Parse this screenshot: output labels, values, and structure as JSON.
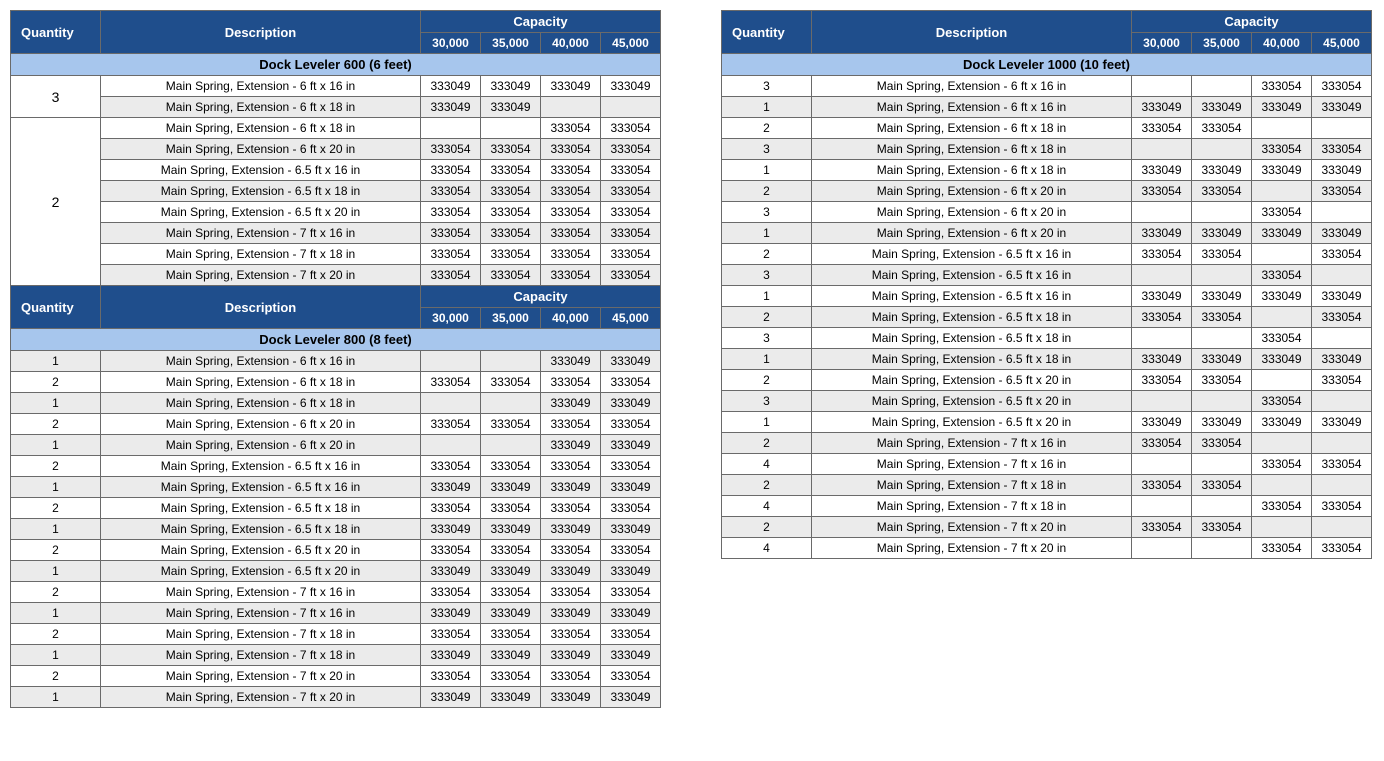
{
  "colors": {
    "header_bg": "#1f4e8c",
    "header_fg": "#ffffff",
    "section_bg": "#a7c6ed",
    "alt_row_bg": "#ebebeb",
    "border": "#6a6a6a"
  },
  "labels": {
    "quantity": "Quantity",
    "description": "Description",
    "capacity": "Capacity",
    "cap_cols": [
      "30,000",
      "35,000",
      "40,000",
      "45,000"
    ]
  },
  "left": {
    "sections": [
      {
        "title": "Dock Leveler 600 (6 feet)",
        "header": true,
        "groups": [
          {
            "qty": "3",
            "rows": [
              {
                "desc": "Main Spring, Extension - 6 ft x 16 in",
                "c": [
                  "333049",
                  "333049",
                  "333049",
                  "333049"
                ],
                "alt": false
              },
              {
                "desc": "Main Spring, Extension - 6 ft x 18 in",
                "c": [
                  "333049",
                  "333049",
                  "",
                  ""
                ],
                "alt": true
              }
            ]
          },
          {
            "qty": "2",
            "rows": [
              {
                "desc": "Main Spring, Extension - 6 ft x 18 in",
                "c": [
                  "",
                  "",
                  "333054",
                  "333054"
                ],
                "alt": false
              },
              {
                "desc": "Main Spring, Extension - 6 ft x 20 in",
                "c": [
                  "333054",
                  "333054",
                  "333054",
                  "333054"
                ],
                "alt": true
              },
              {
                "desc": "Main Spring, Extension - 6.5 ft x 16 in",
                "c": [
                  "333054",
                  "333054",
                  "333054",
                  "333054"
                ],
                "alt": false
              },
              {
                "desc": "Main Spring, Extension - 6.5 ft x 18 in",
                "c": [
                  "333054",
                  "333054",
                  "333054",
                  "333054"
                ],
                "alt": true
              },
              {
                "desc": "Main Spring, Extension - 6.5 ft x 20 in",
                "c": [
                  "333054",
                  "333054",
                  "333054",
                  "333054"
                ],
                "alt": false
              },
              {
                "desc": "Main Spring, Extension - 7 ft x 16 in",
                "c": [
                  "333054",
                  "333054",
                  "333054",
                  "333054"
                ],
                "alt": true
              },
              {
                "desc": "Main Spring, Extension - 7 ft x 18 in",
                "c": [
                  "333054",
                  "333054",
                  "333054",
                  "333054"
                ],
                "alt": false
              },
              {
                "desc": "Main Spring, Extension - 7 ft x 20 in",
                "c": [
                  "333054",
                  "333054",
                  "333054",
                  "333054"
                ],
                "alt": true
              }
            ]
          }
        ]
      },
      {
        "title": "Dock Leveler 800 (8 feet)",
        "header": true,
        "groups": [
          {
            "qty_per_row": true,
            "rows": [
              {
                "qty": "1",
                "desc": "Main Spring, Extension - 6 ft x 16 in",
                "c": [
                  "",
                  "",
                  "333049",
                  "333049"
                ],
                "alt": true
              },
              {
                "qty": "2",
                "desc": "Main Spring, Extension - 6 ft x 18 in",
                "c": [
                  "333054",
                  "333054",
                  "333054",
                  "333054"
                ],
                "alt": false
              },
              {
                "qty": "1",
                "desc": "Main Spring, Extension - 6 ft x 18 in",
                "c": [
                  "",
                  "",
                  "333049",
                  "333049"
                ],
                "alt": true
              },
              {
                "qty": "2",
                "desc": "Main Spring, Extension - 6 ft x 20 in",
                "c": [
                  "333054",
                  "333054",
                  "333054",
                  "333054"
                ],
                "alt": false
              },
              {
                "qty": "1",
                "desc": "Main Spring, Extension - 6 ft x 20 in",
                "c": [
                  "",
                  "",
                  "333049",
                  "333049"
                ],
                "alt": true
              },
              {
                "qty": "2",
                "desc": "Main Spring, Extension - 6.5 ft x 16 in",
                "c": [
                  "333054",
                  "333054",
                  "333054",
                  "333054"
                ],
                "alt": false
              },
              {
                "qty": "1",
                "desc": "Main Spring, Extension - 6.5 ft x 16 in",
                "c": [
                  "333049",
                  "333049",
                  "333049",
                  "333049"
                ],
                "alt": true
              },
              {
                "qty": "2",
                "desc": "Main Spring, Extension - 6.5 ft x 18 in",
                "c": [
                  "333054",
                  "333054",
                  "333054",
                  "333054"
                ],
                "alt": false
              },
              {
                "qty": "1",
                "desc": "Main Spring, Extension - 6.5 ft x 18 in",
                "c": [
                  "333049",
                  "333049",
                  "333049",
                  "333049"
                ],
                "alt": true
              },
              {
                "qty": "2",
                "desc": "Main Spring, Extension - 6.5 ft x 20 in",
                "c": [
                  "333054",
                  "333054",
                  "333054",
                  "333054"
                ],
                "alt": false
              },
              {
                "qty": "1",
                "desc": "Main Spring, Extension - 6.5 ft x 20 in",
                "c": [
                  "333049",
                  "333049",
                  "333049",
                  "333049"
                ],
                "alt": true
              },
              {
                "qty": "2",
                "desc": "Main Spring, Extension - 7 ft x 16 in",
                "c": [
                  "333054",
                  "333054",
                  "333054",
                  "333054"
                ],
                "alt": false
              },
              {
                "qty": "1",
                "desc": "Main Spring, Extension - 7 ft x 16 in",
                "c": [
                  "333049",
                  "333049",
                  "333049",
                  "333049"
                ],
                "alt": true
              },
              {
                "qty": "2",
                "desc": "Main Spring, Extension - 7 ft x 18 in",
                "c": [
                  "333054",
                  "333054",
                  "333054",
                  "333054"
                ],
                "alt": false
              },
              {
                "qty": "1",
                "desc": "Main Spring, Extension - 7 ft x 18 in",
                "c": [
                  "333049",
                  "333049",
                  "333049",
                  "333049"
                ],
                "alt": true
              },
              {
                "qty": "2",
                "desc": "Main Spring, Extension - 7 ft x 20 in",
                "c": [
                  "333054",
                  "333054",
                  "333054",
                  "333054"
                ],
                "alt": false
              },
              {
                "qty": "1",
                "desc": "Main Spring, Extension - 7 ft x 20 in",
                "c": [
                  "333049",
                  "333049",
                  "333049",
                  "333049"
                ],
                "alt": true
              }
            ]
          }
        ]
      }
    ]
  },
  "right": {
    "sections": [
      {
        "title": "Dock Leveler 1000 (10 feet)",
        "header": true,
        "groups": [
          {
            "qty_per_row": true,
            "rows": [
              {
                "qty": "3",
                "desc": "Main Spring, Extension - 6 ft x 16 in",
                "c": [
                  "",
                  "",
                  "333054",
                  "333054"
                ],
                "alt": false
              },
              {
                "qty": "1",
                "desc": "Main Spring, Extension - 6 ft x 16 in",
                "c": [
                  "333049",
                  "333049",
                  "333049",
                  "333049"
                ],
                "alt": true
              },
              {
                "qty": "2",
                "desc": "Main Spring, Extension - 6 ft x 18 in",
                "c": [
                  "333054",
                  "333054",
                  "",
                  ""
                ],
                "alt": false
              },
              {
                "qty": "3",
                "desc": "Main Spring, Extension - 6 ft x 18 in",
                "c": [
                  "",
                  "",
                  "333054",
                  "333054"
                ],
                "alt": true
              },
              {
                "qty": "1",
                "desc": "Main Spring, Extension - 6 ft x 18 in",
                "c": [
                  "333049",
                  "333049",
                  "333049",
                  "333049"
                ],
                "alt": false
              },
              {
                "qty": "2",
                "desc": "Main Spring, Extension - 6 ft x 20 in",
                "c": [
                  "333054",
                  "333054",
                  "",
                  "333054"
                ],
                "alt": true
              },
              {
                "qty": "3",
                "desc": "Main Spring, Extension - 6 ft x 20 in",
                "c": [
                  "",
                  "",
                  "333054",
                  ""
                ],
                "alt": false
              },
              {
                "qty": "1",
                "desc": "Main Spring, Extension - 6 ft x 20 in",
                "c": [
                  "333049",
                  "333049",
                  "333049",
                  "333049"
                ],
                "alt": true
              },
              {
                "qty": "2",
                "desc": "Main Spring, Extension - 6.5 ft x 16 in",
                "c": [
                  "333054",
                  "333054",
                  "",
                  "333054"
                ],
                "alt": false
              },
              {
                "qty": "3",
                "desc": "Main Spring, Extension - 6.5 ft x 16 in",
                "c": [
                  "",
                  "",
                  "333054",
                  ""
                ],
                "alt": true
              },
              {
                "qty": "1",
                "desc": "Main Spring, Extension - 6.5 ft x 16 in",
                "c": [
                  "333049",
                  "333049",
                  "333049",
                  "333049"
                ],
                "alt": false
              },
              {
                "qty": "2",
                "desc": "Main Spring, Extension - 6.5 ft x 18 in",
                "c": [
                  "333054",
                  "333054",
                  "",
                  "333054"
                ],
                "alt": true
              },
              {
                "qty": "3",
                "desc": "Main Spring, Extension - 6.5 ft x 18 in",
                "c": [
                  "",
                  "",
                  "333054",
                  ""
                ],
                "alt": false
              },
              {
                "qty": "1",
                "desc": "Main Spring, Extension - 6.5 ft x 18 in",
                "c": [
                  "333049",
                  "333049",
                  "333049",
                  "333049"
                ],
                "alt": true
              },
              {
                "qty": "2",
                "desc": "Main Spring, Extension - 6.5 ft x 20 in",
                "c": [
                  "333054",
                  "333054",
                  "",
                  "333054"
                ],
                "alt": false
              },
              {
                "qty": "3",
                "desc": "Main Spring, Extension - 6.5 ft x 20 in",
                "c": [
                  "",
                  "",
                  "333054",
                  ""
                ],
                "alt": true
              },
              {
                "qty": "1",
                "desc": "Main Spring, Extension - 6.5 ft x 20 in",
                "c": [
                  "333049",
                  "333049",
                  "333049",
                  "333049"
                ],
                "alt": false
              },
              {
                "qty": "2",
                "desc": "Main Spring, Extension - 7 ft x 16 in",
                "c": [
                  "333054",
                  "333054",
                  "",
                  ""
                ],
                "alt": true
              },
              {
                "qty": "4",
                "desc": "Main Spring, Extension - 7 ft x 16 in",
                "c": [
                  "",
                  "",
                  "333054",
                  "333054"
                ],
                "alt": false
              },
              {
                "qty": "2",
                "desc": "Main Spring, Extension - 7 ft x 18 in",
                "c": [
                  "333054",
                  "333054",
                  "",
                  ""
                ],
                "alt": true
              },
              {
                "qty": "4",
                "desc": "Main Spring, Extension - 7 ft x 18 in",
                "c": [
                  "",
                  "",
                  "333054",
                  "333054"
                ],
                "alt": false
              },
              {
                "qty": "2",
                "desc": "Main Spring, Extension - 7 ft x 20 in",
                "c": [
                  "333054",
                  "333054",
                  "",
                  ""
                ],
                "alt": true
              },
              {
                "qty": "4",
                "desc": "Main Spring, Extension - 7 ft x 20 in",
                "c": [
                  "",
                  "",
                  "333054",
                  "333054"
                ],
                "alt": false
              }
            ]
          }
        ]
      }
    ]
  }
}
